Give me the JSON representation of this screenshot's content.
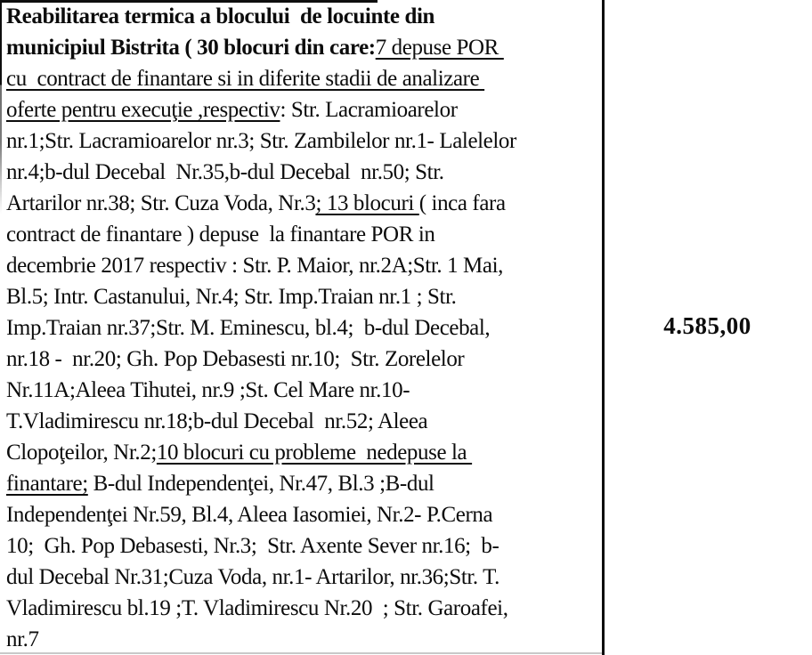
{
  "document": {
    "kind": "scanned-table-fragment",
    "language": "Romanian",
    "ink_color": "#0c0c0c",
    "paper_color": "#ffffff",
    "left_cell": {
      "lines": [
        [
          {
            "t": "Reabilitarea termica a blocului  de locuinte din",
            "b": true
          }
        ],
        [
          {
            "t": "municipiul Bistrita ( 30 blocuri din care:",
            "b": true
          },
          {
            "t": "7 depuse POR ",
            "u": true
          }
        ],
        [
          {
            "t": "cu  contract de finantare si in diferite stadii de analizare ",
            "u": true
          }
        ],
        [
          {
            "t": "oferte pentru execuţie ,respectiv",
            "u": true
          },
          {
            "t": ": Str. Lacramioarelor"
          }
        ],
        [
          {
            "t": "nr.1;Str. Lacramioarelor nr.3; Str. Zambilelor nr.1- Lalelelor"
          }
        ],
        [
          {
            "t": "nr.4;b-dul Decebal  Nr.35,b-dul Decebal  nr.50; Str."
          }
        ],
        [
          {
            "t": "Artarilor nr.38; Str. Cuza Voda, Nr.3"
          },
          {
            "t": "; 13 blocuri ",
            "u": true
          },
          {
            "t": "( inca fara"
          }
        ],
        [
          {
            "t": "contract de finantare ) depuse  la finantare POR in"
          }
        ],
        [
          {
            "t": "decembrie 2017 respectiv : Str. P. Maior, nr.2A;Str. 1 Mai,"
          }
        ],
        [
          {
            "t": "Bl.5; Intr. Castanului, Nr.4; Str. Imp.Traian nr.1 ; Str."
          }
        ],
        [
          {
            "t": "Imp.Traian nr.37;Str. M. Eminescu, bl.4;  b-dul Decebal,"
          }
        ],
        [
          {
            "t": "nr.18 -  nr.20; Gh. Pop Debasesti nr.10;  Str. Zorelelor"
          }
        ],
        [
          {
            "t": "Nr.11A;Aleea Tihutei, nr.9 ;St. Cel Mare nr.10-"
          }
        ],
        [
          {
            "t": "T.Vladimirescu nr.18;b-dul Decebal  nr.52; Aleea"
          }
        ],
        [
          {
            "t": "Clopoţeilor, Nr.2;"
          },
          {
            "t": "10 blocuri cu probleme  nedepuse la ",
            "u": true
          }
        ],
        [
          {
            "t": "finantare;",
            "u": true
          },
          {
            "t": " B-dul Independenţei, Nr.47, Bl.3 ;B-dul"
          }
        ],
        [
          {
            "t": "Independenţei Nr.59, Bl.4, Aleea Iasomiei, Nr.2- P.Cerna"
          }
        ],
        [
          {
            "t": "10;  Gh. Pop Debasesti, Nr.3;  Str. Axente Sever nr.16;  b-"
          }
        ],
        [
          {
            "t": "dul Decebal Nr.31;Cuza Voda, nr.1- Artarilor, nr.36;Str. T."
          }
        ],
        [
          {
            "t": "Vladimirescu bl.19 ;T. Vladimirescu Nr.20  ; Str. Garoafei,"
          }
        ],
        [
          {
            "t": "nr.7"
          }
        ]
      ]
    },
    "right_cell": {
      "value": "4.585,00"
    }
  }
}
